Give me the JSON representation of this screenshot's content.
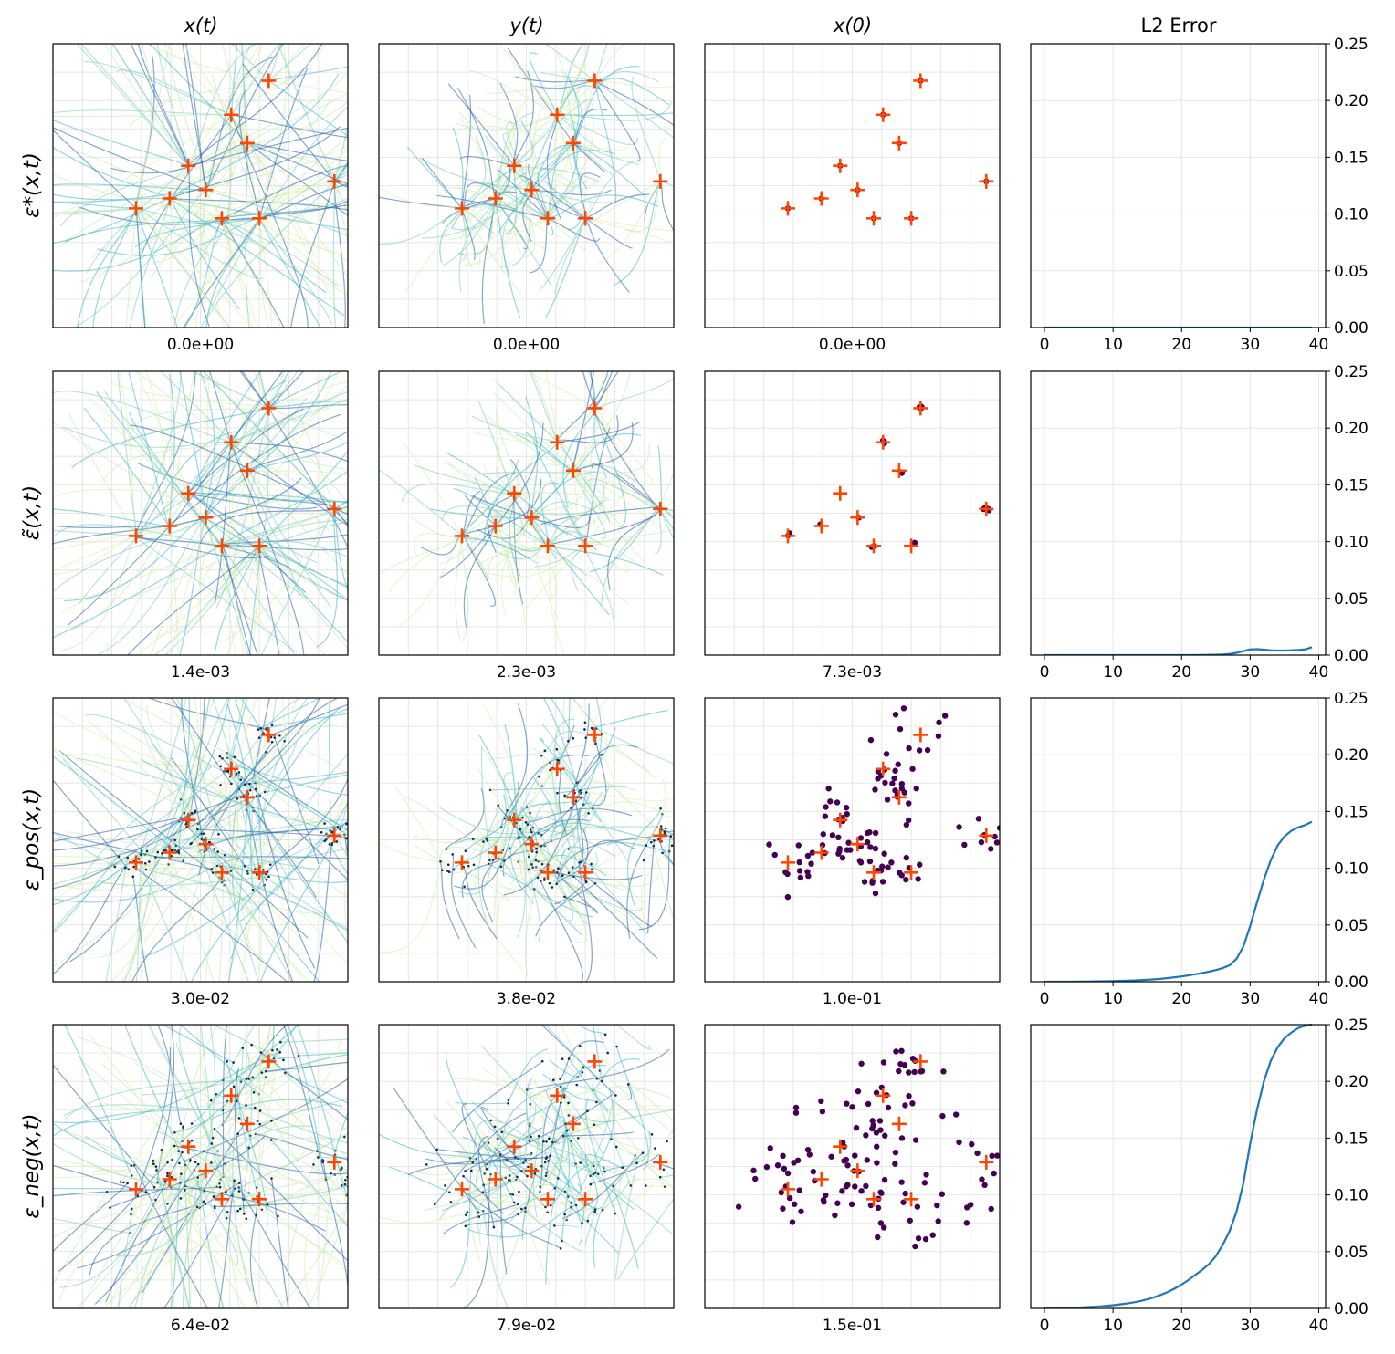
{
  "column_titles": [
    "x(t)",
    "y(t)",
    "x(0)",
    "L2 Error"
  ],
  "row_labels": [
    "ε*(x,t)",
    "ε̃(x,t)",
    "ε_pos(x,t)",
    "ε_neg(x,t)"
  ],
  "colors": {
    "marker": "#ff4500",
    "sample_points": "#440154",
    "error_line": "#1f77b4",
    "grid": "#e6e6e6",
    "streamline_light": "#d9f0a3",
    "streamline_mid": "#41b6c4",
    "streamline_dark": "#225ea8"
  },
  "icons": {
    "marker": "plus-marker-icon"
  },
  "chart_data": {
    "type": "line",
    "l2_axis": {
      "x_ticks": [
        "0",
        "10",
        "20",
        "30",
        "40"
      ],
      "y_ticks": [
        "0.00",
        "0.05",
        "0.10",
        "0.15",
        "0.20",
        "0.25"
      ],
      "xlim": [
        -2,
        41
      ],
      "ylim": [
        0,
        0.25
      ],
      "y_axis_side": "right"
    },
    "modes": [
      {
        "mode": [
          -0.38,
          -0.16
        ]
      },
      {
        "mode": [
          -0.13,
          -0.09
        ]
      },
      {
        "mode": [
          0.01,
          0.14
        ]
      },
      {
        "mode": [
          0.14,
          -0.03
        ]
      },
      {
        "mode": [
          0.26,
          -0.23
        ]
      },
      {
        "mode": [
          0.33,
          0.5
        ]
      },
      {
        "mode": [
          0.45,
          0.3
        ]
      },
      {
        "mode": [
          0.61,
          0.74
        ]
      },
      {
        "mode": [
          0.54,
          -0.23
        ]
      },
      {
        "mode": [
          1.1,
          0.03
        ]
      }
    ],
    "rows": [
      {
        "row_label": "ε*(x,t)",
        "errors": {
          "x_t": "0.0e+00",
          "y_t": "0.0e+00",
          "x_0": "0.0e+00"
        },
        "spread": 0,
        "sample_count": 0,
        "l2_series": [
          0,
          0,
          0,
          0,
          0,
          0,
          0,
          0,
          0,
          0,
          0,
          0,
          0,
          0,
          0,
          0,
          0,
          0,
          0,
          0,
          0,
          0,
          0,
          0,
          0,
          0,
          0,
          0,
          0,
          0,
          0,
          0,
          0,
          0,
          0,
          0,
          0,
          0,
          0,
          0
        ]
      },
      {
        "row_label": "ε̃(x,t)",
        "errors": {
          "x_t": "1.4e-03",
          "y_t": "2.3e-03",
          "x_0": "7.3e-03"
        },
        "spread": 0.01,
        "sample_count": 20,
        "l2_series": [
          0,
          0,
          0,
          0,
          0,
          0,
          0,
          0,
          0,
          0,
          0,
          0,
          0,
          0,
          0,
          0,
          0,
          0,
          0,
          0,
          0,
          0,
          0,
          0.0001,
          0.0002,
          0.0003,
          0.0005,
          0.001,
          0.002,
          0.0035,
          0.005,
          0.0052,
          0.0048,
          0.0042,
          0.004,
          0.004,
          0.0042,
          0.0045,
          0.005,
          0.007
        ]
      },
      {
        "row_label": "ε_pos(x,t)",
        "errors": {
          "x_t": "3.0e-02",
          "y_t": "3.8e-02",
          "x_0": "1.0e-01"
        },
        "spread": 0.09,
        "sample_count": 110,
        "l2_series": [
          0,
          0,
          0,
          0,
          0,
          0.0001,
          0.0001,
          0.0002,
          0.0003,
          0.0004,
          0.0005,
          0.0007,
          0.0009,
          0.0011,
          0.0014,
          0.0017,
          0.0021,
          0.0026,
          0.0032,
          0.0039,
          0.0047,
          0.0056,
          0.0066,
          0.0077,
          0.0089,
          0.0103,
          0.012,
          0.0145,
          0.02,
          0.031,
          0.049,
          0.07,
          0.09,
          0.107,
          0.12,
          0.128,
          0.133,
          0.136,
          0.138,
          0.141
        ]
      },
      {
        "row_label": "ε_neg(x,t)",
        "errors": {
          "x_t": "6.4e-02",
          "y_t": "7.9e-02",
          "x_0": "1.5e-01"
        },
        "spread": 0.2,
        "sample_count": 130,
        "l2_series": [
          0,
          0,
          0.0002,
          0.0003,
          0.0005,
          0.0007,
          0.001,
          0.0013,
          0.0017,
          0.0022,
          0.0028,
          0.0035,
          0.0043,
          0.0053,
          0.0065,
          0.008,
          0.0098,
          0.012,
          0.0145,
          0.0175,
          0.021,
          0.025,
          0.0295,
          0.034,
          0.039,
          0.046,
          0.056,
          0.068,
          0.085,
          0.11,
          0.145,
          0.175,
          0.2,
          0.218,
          0.23,
          0.238,
          0.243,
          0.247,
          0.249,
          0.251
        ]
      }
    ]
  }
}
